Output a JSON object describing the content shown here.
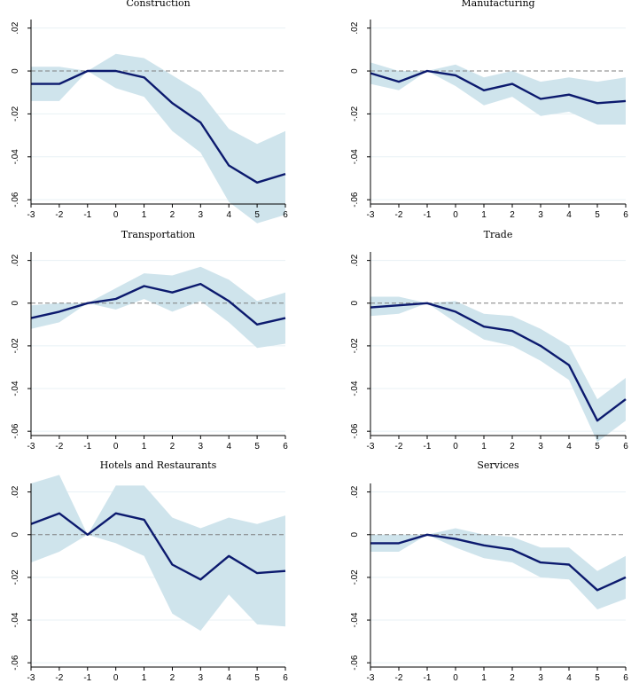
{
  "figure": {
    "colors": {
      "band": "#cfe4ec",
      "line": "#0c1a6e",
      "zero_line": "#7f7f7f",
      "grid": "#e8f1f5",
      "axis": "#000000"
    }
  },
  "chart_data": [
    {
      "type": "line",
      "title": "Construction",
      "x": [
        -3,
        -2,
        -1,
        0,
        1,
        2,
        3,
        4,
        5,
        6
      ],
      "series": [
        {
          "name": "estimate",
          "values": [
            -0.006,
            -0.006,
            0,
            0,
            -0.003,
            -0.015,
            -0.024,
            -0.044,
            -0.052,
            -0.048
          ]
        },
        {
          "name": "ci_lower",
          "values": [
            -0.014,
            -0.014,
            0,
            -0.008,
            -0.012,
            -0.028,
            -0.038,
            -0.061,
            -0.071,
            -0.067
          ]
        },
        {
          "name": "ci_upper",
          "values": [
            0.002,
            0.002,
            0,
            0.008,
            0.006,
            -0.002,
            -0.01,
            -0.027,
            -0.034,
            -0.028
          ]
        }
      ],
      "xticks": [
        "-3",
        "-2",
        "-1",
        "0",
        "1",
        "2",
        "3",
        "4",
        "5",
        "6"
      ],
      "yticks": [
        "-.06",
        "-.04",
        "-.02",
        "0",
        ".02"
      ],
      "ylim": [
        -0.062,
        0.024
      ],
      "xlim": [
        -3,
        6
      ],
      "grid": true
    },
    {
      "type": "line",
      "title": "Manufacturing",
      "x": [
        -3,
        -2,
        -1,
        0,
        1,
        2,
        3,
        4,
        5,
        6
      ],
      "series": [
        {
          "name": "estimate",
          "values": [
            -0.001,
            -0.005,
            0,
            -0.002,
            -0.009,
            -0.006,
            -0.013,
            -0.011,
            -0.015,
            -0.014
          ]
        },
        {
          "name": "ci_lower",
          "values": [
            -0.006,
            -0.009,
            0,
            -0.007,
            -0.016,
            -0.012,
            -0.021,
            -0.019,
            -0.025,
            -0.025
          ]
        },
        {
          "name": "ci_upper",
          "values": [
            0.004,
            0,
            0,
            0.003,
            -0.003,
            0,
            -0.005,
            -0.003,
            -0.005,
            -0.003
          ]
        }
      ],
      "xticks": [
        "-3",
        "-2",
        "-1",
        "0",
        "1",
        "2",
        "3",
        "4",
        "5",
        "6"
      ],
      "yticks": [
        "-.06",
        "-.04",
        "-.02",
        "0",
        ".02"
      ],
      "ylim": [
        -0.062,
        0.024
      ],
      "xlim": [
        -3,
        6
      ],
      "grid": true
    },
    {
      "type": "line",
      "title": "Transportation",
      "x": [
        -3,
        -2,
        -1,
        0,
        1,
        2,
        3,
        4,
        5,
        6
      ],
      "series": [
        {
          "name": "estimate",
          "values": [
            -0.007,
            -0.004,
            0,
            0.002,
            0.008,
            0.005,
            0.009,
            0.001,
            -0.01,
            -0.007
          ]
        },
        {
          "name": "ci_lower",
          "values": [
            -0.012,
            -0.009,
            0,
            -0.003,
            0.002,
            -0.004,
            0.001,
            -0.009,
            -0.021,
            -0.019
          ]
        },
        {
          "name": "ci_upper",
          "values": [
            -0.001,
            0,
            0,
            0.007,
            0.014,
            0.013,
            0.017,
            0.011,
            0.001,
            0.005
          ]
        }
      ],
      "xticks": [
        "-3",
        "-2",
        "-1",
        "0",
        "1",
        "2",
        "3",
        "4",
        "5",
        "6"
      ],
      "yticks": [
        "-.06",
        "-.04",
        "-.02",
        "0",
        ".02"
      ],
      "ylim": [
        -0.062,
        0.024
      ],
      "xlim": [
        -3,
        6
      ],
      "grid": true
    },
    {
      "type": "line",
      "title": "Trade",
      "x": [
        -3,
        -2,
        -1,
        0,
        1,
        2,
        3,
        4,
        5,
        6
      ],
      "series": [
        {
          "name": "estimate",
          "values": [
            -0.002,
            -0.001,
            0,
            -0.004,
            -0.011,
            -0.013,
            -0.02,
            -0.029,
            -0.055,
            -0.045
          ]
        },
        {
          "name": "ci_lower",
          "values": [
            -0.006,
            -0.005,
            0,
            -0.009,
            -0.017,
            -0.02,
            -0.027,
            -0.036,
            -0.065,
            -0.055
          ]
        },
        {
          "name": "ci_upper",
          "values": [
            0.003,
            0.003,
            0,
            0.001,
            -0.005,
            -0.006,
            -0.012,
            -0.02,
            -0.045,
            -0.035
          ]
        }
      ],
      "xticks": [
        "-3",
        "-2",
        "-1",
        "0",
        "1",
        "2",
        "3",
        "4",
        "5",
        "6"
      ],
      "yticks": [
        "-.06",
        "-.04",
        "-.02",
        "0",
        ".02"
      ],
      "ylim": [
        -0.062,
        0.024
      ],
      "xlim": [
        -3,
        6
      ],
      "grid": true
    },
    {
      "type": "line",
      "title": "Hotels and Restaurants",
      "x": [
        -3,
        -2,
        -1,
        0,
        1,
        2,
        3,
        4,
        5,
        6
      ],
      "series": [
        {
          "name": "estimate",
          "values": [
            0.005,
            0.01,
            0,
            0.01,
            0.007,
            -0.014,
            -0.021,
            -0.01,
            -0.018,
            -0.017
          ]
        },
        {
          "name": "ci_lower",
          "values": [
            -0.013,
            -0.008,
            0,
            -0.004,
            -0.01,
            -0.037,
            -0.045,
            -0.028,
            -0.042,
            -0.043
          ]
        },
        {
          "name": "ci_upper",
          "values": [
            0.024,
            0.028,
            0,
            0.023,
            0.023,
            0.008,
            0.003,
            0.008,
            0.005,
            0.009
          ]
        }
      ],
      "xticks": [
        "-3",
        "-2",
        "-1",
        "0",
        "1",
        "2",
        "3",
        "4",
        "5",
        "6"
      ],
      "yticks": [
        "-.06",
        "-.04",
        "-.02",
        "0",
        ".02"
      ],
      "ylim": [
        -0.062,
        0.024
      ],
      "xlim": [
        -3,
        6
      ],
      "grid": true
    },
    {
      "type": "line",
      "title": "Services",
      "x": [
        -3,
        -2,
        -1,
        0,
        1,
        2,
        3,
        4,
        5,
        6
      ],
      "series": [
        {
          "name": "estimate",
          "values": [
            -0.004,
            -0.004,
            0,
            -0.002,
            -0.005,
            -0.007,
            -0.013,
            -0.014,
            -0.026,
            -0.02
          ]
        },
        {
          "name": "ci_lower",
          "values": [
            -0.008,
            -0.008,
            0,
            -0.006,
            -0.011,
            -0.013,
            -0.02,
            -0.021,
            -0.035,
            -0.03
          ]
        },
        {
          "name": "ci_upper",
          "values": [
            0,
            0,
            0,
            0.003,
            0,
            -0.001,
            -0.006,
            -0.006,
            -0.017,
            -0.01
          ]
        }
      ],
      "xticks": [
        "-3",
        "-2",
        "-1",
        "0",
        "1",
        "2",
        "3",
        "4",
        "5",
        "6"
      ],
      "yticks": [
        "-.06",
        "-.04",
        "-.02",
        "0",
        ".02"
      ],
      "ylim": [
        -0.062,
        0.024
      ],
      "xlim": [
        -3,
        6
      ],
      "grid": true
    }
  ]
}
